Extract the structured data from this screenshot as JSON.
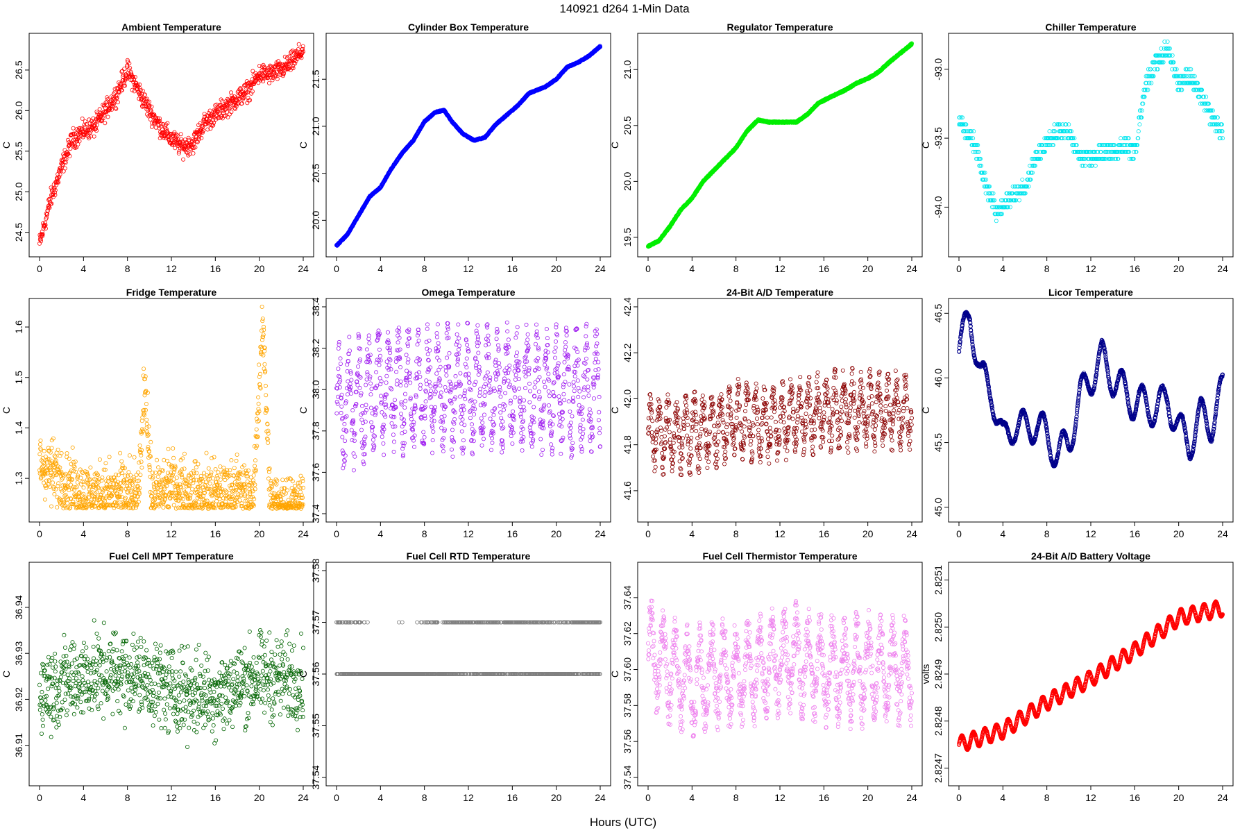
{
  "title": "140921    d264    1-Min Data",
  "xlabel": "Hours (UTC)",
  "chart_data": [
    {
      "type": "scatter",
      "title": "Ambient Temperature",
      "ylabel": "C",
      "color": "#ff0000",
      "xlim": [
        0,
        24
      ],
      "ylim": [
        24.3,
        26.85
      ],
      "xticks": [
        "0",
        "4",
        "8",
        "12",
        "16",
        "20",
        "24"
      ],
      "yticks": [
        "24.5",
        "25.0",
        "25.5",
        "26.0",
        "26.5"
      ],
      "ytick_values": [
        24.5,
        25.0,
        25.5,
        26.0,
        26.5
      ],
      "trend": [
        [
          0,
          24.35
        ],
        [
          1,
          24.9
        ],
        [
          2,
          25.3
        ],
        [
          3,
          25.65
        ],
        [
          4,
          25.75
        ],
        [
          5,
          25.8
        ],
        [
          6,
          26.0
        ],
        [
          7,
          26.2
        ],
        [
          8,
          26.5
        ],
        [
          9,
          26.25
        ],
        [
          10,
          26.0
        ],
        [
          11,
          25.8
        ],
        [
          12,
          25.65
        ],
        [
          13,
          25.55
        ],
        [
          14,
          25.6
        ],
        [
          15,
          25.85
        ],
        [
          16,
          25.95
        ],
        [
          17,
          26.05
        ],
        [
          18,
          26.15
        ],
        [
          19,
          26.25
        ],
        [
          20,
          26.45
        ],
        [
          21,
          26.45
        ],
        [
          22,
          26.5
        ],
        [
          23,
          26.6
        ],
        [
          24,
          26.75
        ]
      ],
      "noise": 0.12,
      "n": 900,
      "style": "scatter"
    },
    {
      "type": "scatter",
      "title": "Cylinder Box Temperature",
      "ylabel": "C",
      "color": "#0000ff",
      "xlim": [
        0,
        24
      ],
      "ylim": [
        19.7,
        21.9
      ],
      "xticks": [
        "0",
        "4",
        "8",
        "12",
        "16",
        "20",
        "24"
      ],
      "yticks": [
        "20.0",
        "20.5",
        "21.0",
        "21.5"
      ],
      "ytick_values": [
        20.0,
        20.5,
        21.0,
        21.5
      ],
      "trend": [
        [
          0,
          19.73
        ],
        [
          1,
          19.85
        ],
        [
          2,
          20.05
        ],
        [
          3,
          20.25
        ],
        [
          4,
          20.35
        ],
        [
          5,
          20.55
        ],
        [
          6,
          20.72
        ],
        [
          7,
          20.85
        ],
        [
          8,
          21.05
        ],
        [
          9,
          21.15
        ],
        [
          9.8,
          21.17
        ],
        [
          10.5,
          21.05
        ],
        [
          11.5,
          20.92
        ],
        [
          12.5,
          20.85
        ],
        [
          13.5,
          20.88
        ],
        [
          14.5,
          21.02
        ],
        [
          15.5,
          21.12
        ],
        [
          16.5,
          21.22
        ],
        [
          17.5,
          21.35
        ],
        [
          19,
          21.42
        ],
        [
          20,
          21.5
        ],
        [
          21,
          21.63
        ],
        [
          22,
          21.68
        ],
        [
          23,
          21.75
        ],
        [
          24,
          21.85
        ]
      ],
      "noise": 0.012,
      "n": 1400,
      "style": "line"
    },
    {
      "type": "scatter",
      "title": "Regulator Temperature",
      "ylabel": "C",
      "color": "#00ee00",
      "xlim": [
        0,
        24
      ],
      "ylim": [
        19.4,
        21.25
      ],
      "xticks": [
        "0",
        "4",
        "8",
        "12",
        "16",
        "20",
        "24"
      ],
      "yticks": [
        "19.5",
        "20.0",
        "20.5",
        "21.0"
      ],
      "ytick_values": [
        19.5,
        20.0,
        20.5,
        21.0
      ],
      "trend": [
        [
          0,
          19.42
        ],
        [
          1,
          19.47
        ],
        [
          2,
          19.6
        ],
        [
          3,
          19.75
        ],
        [
          4,
          19.85
        ],
        [
          5,
          20.0
        ],
        [
          6,
          20.1
        ],
        [
          7,
          20.2
        ],
        [
          8,
          20.3
        ],
        [
          9,
          20.45
        ],
        [
          10,
          20.55
        ],
        [
          11,
          20.53
        ],
        [
          12,
          20.53
        ],
        [
          13.5,
          20.53
        ],
        [
          14.5,
          20.6
        ],
        [
          15.5,
          20.7
        ],
        [
          16.5,
          20.75
        ],
        [
          18,
          20.82
        ],
        [
          19,
          20.88
        ],
        [
          20,
          20.92
        ],
        [
          21,
          20.98
        ],
        [
          22,
          21.07
        ],
        [
          23,
          21.15
        ],
        [
          24,
          21.23
        ]
      ],
      "noise": 0.012,
      "n": 1400,
      "style": "line"
    },
    {
      "type": "scatter",
      "title": "Chiller Temperature",
      "ylabel": "C",
      "color": "#00e5ee",
      "xlim": [
        0,
        24
      ],
      "ylim": [
        -94.3,
        -92.8
      ],
      "xticks": [
        "0",
        "4",
        "8",
        "12",
        "16",
        "20",
        "24"
      ],
      "yticks": [
        "-94.0",
        "-93.5",
        "-93.0"
      ],
      "ytick_values": [
        -94.0,
        -93.5,
        -93.0
      ],
      "trend": [
        [
          0,
          -93.35
        ],
        [
          1.5,
          -93.55
        ],
        [
          2.5,
          -93.85
        ],
        [
          3.5,
          -94.05
        ],
        [
          4.5,
          -93.95
        ],
        [
          6,
          -93.85
        ],
        [
          7,
          -93.65
        ],
        [
          8,
          -93.55
        ],
        [
          9,
          -93.45
        ],
        [
          10,
          -93.45
        ],
        [
          11,
          -93.65
        ],
        [
          12,
          -93.65
        ],
        [
          13,
          -93.6
        ],
        [
          14,
          -93.6
        ],
        [
          15,
          -93.55
        ],
        [
          16,
          -93.6
        ],
        [
          17,
          -93.1
        ],
        [
          18,
          -92.95
        ],
        [
          19,
          -92.85
        ],
        [
          20,
          -93.1
        ],
        [
          21,
          -93.05
        ],
        [
          22,
          -93.2
        ],
        [
          23,
          -93.35
        ],
        [
          24,
          -93.45
        ]
      ],
      "noise": 0.12,
      "n": 700,
      "style": "quant",
      "quant": 0.05
    },
    {
      "type": "scatter",
      "title": "Fridge Temperature",
      "ylabel": "C",
      "color": "#ffa500",
      "xlim": [
        0,
        24
      ],
      "ylim": [
        1.23,
        1.64
      ],
      "xticks": [
        "0",
        "4",
        "8",
        "12",
        "16",
        "20",
        "24"
      ],
      "yticks": [
        "1.3",
        "1.4",
        "1.5",
        "1.6"
      ],
      "ytick_values": [
        1.3,
        1.4,
        1.5,
        1.6
      ],
      "trend": [
        [
          0,
          1.33
        ],
        [
          2,
          1.3
        ],
        [
          4,
          1.27
        ],
        [
          6,
          1.27
        ],
        [
          8,
          1.27
        ],
        [
          9,
          1.26
        ],
        [
          9.6,
          1.5
        ],
        [
          10.2,
          1.26
        ],
        [
          12,
          1.29
        ],
        [
          14,
          1.27
        ],
        [
          16,
          1.27
        ],
        [
          18,
          1.28
        ],
        [
          19.5,
          1.26
        ],
        [
          20.3,
          1.62
        ],
        [
          21,
          1.25
        ],
        [
          24,
          1.25
        ]
      ],
      "noise": 0.06,
      "n": 1300,
      "style": "scatter",
      "floor": 1.24
    },
    {
      "type": "scatter",
      "title": "Omega Temperature",
      "ylabel": "C",
      "color": "#a020f0",
      "xlim": [
        0,
        24
      ],
      "ylim": [
        37.4,
        38.4
      ],
      "xticks": [
        "0",
        "4",
        "8",
        "12",
        "16",
        "20",
        "24"
      ],
      "yticks": [
        "37.4",
        "37.6",
        "37.8",
        "38.0",
        "38.2",
        "38.4"
      ],
      "ytick_values": [
        37.4,
        37.6,
        37.8,
        38.0,
        38.2,
        38.4
      ],
      "trend": [
        [
          0,
          37.9
        ],
        [
          4,
          38.0
        ],
        [
          8,
          38.0
        ],
        [
          12,
          38.0
        ],
        [
          16,
          38.0
        ],
        [
          20,
          38.0
        ],
        [
          24,
          38.0
        ]
      ],
      "noise": 0.35,
      "n": 1100,
      "style": "osc",
      "period": 0.9
    },
    {
      "type": "scatter",
      "title": "24-Bit A/D Temperature",
      "ylabel": "C",
      "color": "#8b0000",
      "xlim": [
        0,
        24
      ],
      "ylim": [
        41.5,
        42.4
      ],
      "xticks": [
        "0",
        "4",
        "8",
        "12",
        "16",
        "20",
        "24"
      ],
      "yticks": [
        "41.6",
        "41.8",
        "42.0",
        "42.2",
        "42.4"
      ],
      "ytick_values": [
        41.6,
        41.8,
        42.0,
        42.2,
        42.4
      ],
      "trend": [
        [
          0,
          41.85
        ],
        [
          4,
          41.85
        ],
        [
          8,
          41.9
        ],
        [
          12,
          41.9
        ],
        [
          16,
          41.95
        ],
        [
          20,
          41.95
        ],
        [
          24,
          41.95
        ]
      ],
      "noise": 0.2,
      "n": 1100,
      "style": "osc",
      "period": 0.8
    },
    {
      "type": "scatter",
      "title": "Licor Temperature",
      "ylabel": "C",
      "color": "#00008b",
      "xlim": [
        0,
        24
      ],
      "ylim": [
        44.95,
        46.55
      ],
      "xticks": [
        "0",
        "4",
        "8",
        "12",
        "16",
        "20",
        "24"
      ],
      "yticks": [
        "45.0",
        "45.5",
        "46.0",
        "46.5"
      ],
      "ytick_values": [
        45.0,
        45.5,
        46.0,
        46.5
      ],
      "trend": [
        [
          0,
          46.2
        ],
        [
          1,
          46.5
        ],
        [
          2,
          46.0
        ],
        [
          3,
          45.9
        ],
        [
          4,
          45.5
        ],
        [
          5,
          45.65
        ],
        [
          6,
          45.6
        ],
        [
          7,
          45.65
        ],
        [
          8,
          45.55
        ],
        [
          9,
          45.4
        ],
        [
          10,
          45.5
        ],
        [
          11,
          45.85
        ],
        [
          12,
          46.0
        ],
        [
          13,
          46.15
        ],
        [
          14,
          46.0
        ],
        [
          15,
          45.9
        ],
        [
          16,
          45.8
        ],
        [
          17,
          45.8
        ],
        [
          18,
          45.75
        ],
        [
          19,
          45.85
        ],
        [
          20,
          45.6
        ],
        [
          21,
          45.5
        ],
        [
          22,
          45.7
        ],
        [
          23,
          45.65
        ],
        [
          24,
          45.9
        ]
      ],
      "noise": 0.25,
      "n": 1600,
      "style": "wave",
      "period": 1.8
    },
    {
      "type": "scatter",
      "title": "Fuel Cell MPT Temperature",
      "ylabel": "C",
      "color": "#006400",
      "xlim": [
        0,
        24
      ],
      "ylim": [
        36.903,
        36.948
      ],
      "xticks": [
        "0",
        "4",
        "8",
        "12",
        "16",
        "20",
        "24"
      ],
      "yticks": [
        "36.91",
        "36.92",
        "36.93",
        "36.94"
      ],
      "ytick_values": [
        36.91,
        36.92,
        36.93,
        36.94
      ],
      "trend": [
        [
          0,
          36.922
        ],
        [
          4,
          36.925
        ],
        [
          8,
          36.926
        ],
        [
          12,
          36.922
        ],
        [
          16,
          36.921
        ],
        [
          20,
          36.925
        ],
        [
          24,
          36.924
        ]
      ],
      "noise": 0.009,
      "n": 1000,
      "style": "scatter"
    },
    {
      "type": "scatter",
      "title": "Fuel Cell RTD Temperature",
      "ylabel": "C",
      "color": "#808080",
      "xlim": [
        0,
        24
      ],
      "ylim": [
        37.54,
        37.58
      ],
      "xticks": [
        "0",
        "4",
        "8",
        "12",
        "16",
        "20",
        "24"
      ],
      "yticks": [
        "37.54",
        "37.55",
        "37.56",
        "37.57",
        "37.58"
      ],
      "ytick_values": [
        37.54,
        37.55,
        37.56,
        37.57,
        37.58
      ],
      "trend": [
        [
          0,
          37.565
        ],
        [
          4,
          37.56
        ],
        [
          8,
          37.562
        ],
        [
          12,
          37.566
        ],
        [
          16,
          37.565
        ],
        [
          20,
          37.563
        ],
        [
          24,
          37.566
        ]
      ],
      "noise": 0.009,
      "n": 900,
      "style": "quant",
      "quant": 0.01
    },
    {
      "type": "scatter",
      "title": "Fuel Cell Thermistor Temperature",
      "ylabel": "C",
      "color": "#ee82ee",
      "xlim": [
        0,
        24
      ],
      "ylim": [
        37.54,
        37.655
      ],
      "xticks": [
        "0",
        "4",
        "8",
        "12",
        "16",
        "20",
        "24"
      ],
      "yticks": [
        "37.54",
        "37.56",
        "37.58",
        "37.60",
        "37.62",
        "37.64"
      ],
      "ytick_values": [
        37.54,
        37.56,
        37.58,
        37.6,
        37.62,
        37.64
      ],
      "trend": [
        [
          0,
          37.61
        ],
        [
          2,
          37.6
        ],
        [
          4,
          37.59
        ],
        [
          6,
          37.6
        ],
        [
          8,
          37.595
        ],
        [
          10,
          37.6
        ],
        [
          12,
          37.605
        ],
        [
          14,
          37.605
        ],
        [
          16,
          37.6
        ],
        [
          20,
          37.6
        ],
        [
          24,
          37.6
        ]
      ],
      "noise": 0.035,
      "n": 1300,
      "style": "osc",
      "period": 1.1
    },
    {
      "type": "scatter",
      "title": "24-Bit A/D Battery Voltage",
      "ylabel": "volts",
      "color": "#ff0000",
      "xlim": [
        0,
        24
      ],
      "ylim": [
        2.82468,
        2.82512
      ],
      "xticks": [
        "0",
        "4",
        "8",
        "12",
        "16",
        "20",
        "24"
      ],
      "yticks": [
        "2.8247",
        "2.8248",
        "2.8249",
        "2.8250",
        "2.8251"
      ],
      "ytick_values": [
        2.8247,
        2.8248,
        2.8249,
        2.825,
        2.8251
      ],
      "trend": [
        [
          0,
          2.82475
        ],
        [
          4,
          2.82478
        ],
        [
          8,
          2.82484
        ],
        [
          12,
          2.82489
        ],
        [
          16,
          2.82495
        ],
        [
          20,
          2.82502
        ],
        [
          24,
          2.82504
        ]
      ],
      "noise": 3e-05,
      "n": 1600,
      "style": "wave",
      "period": 1.05
    }
  ]
}
